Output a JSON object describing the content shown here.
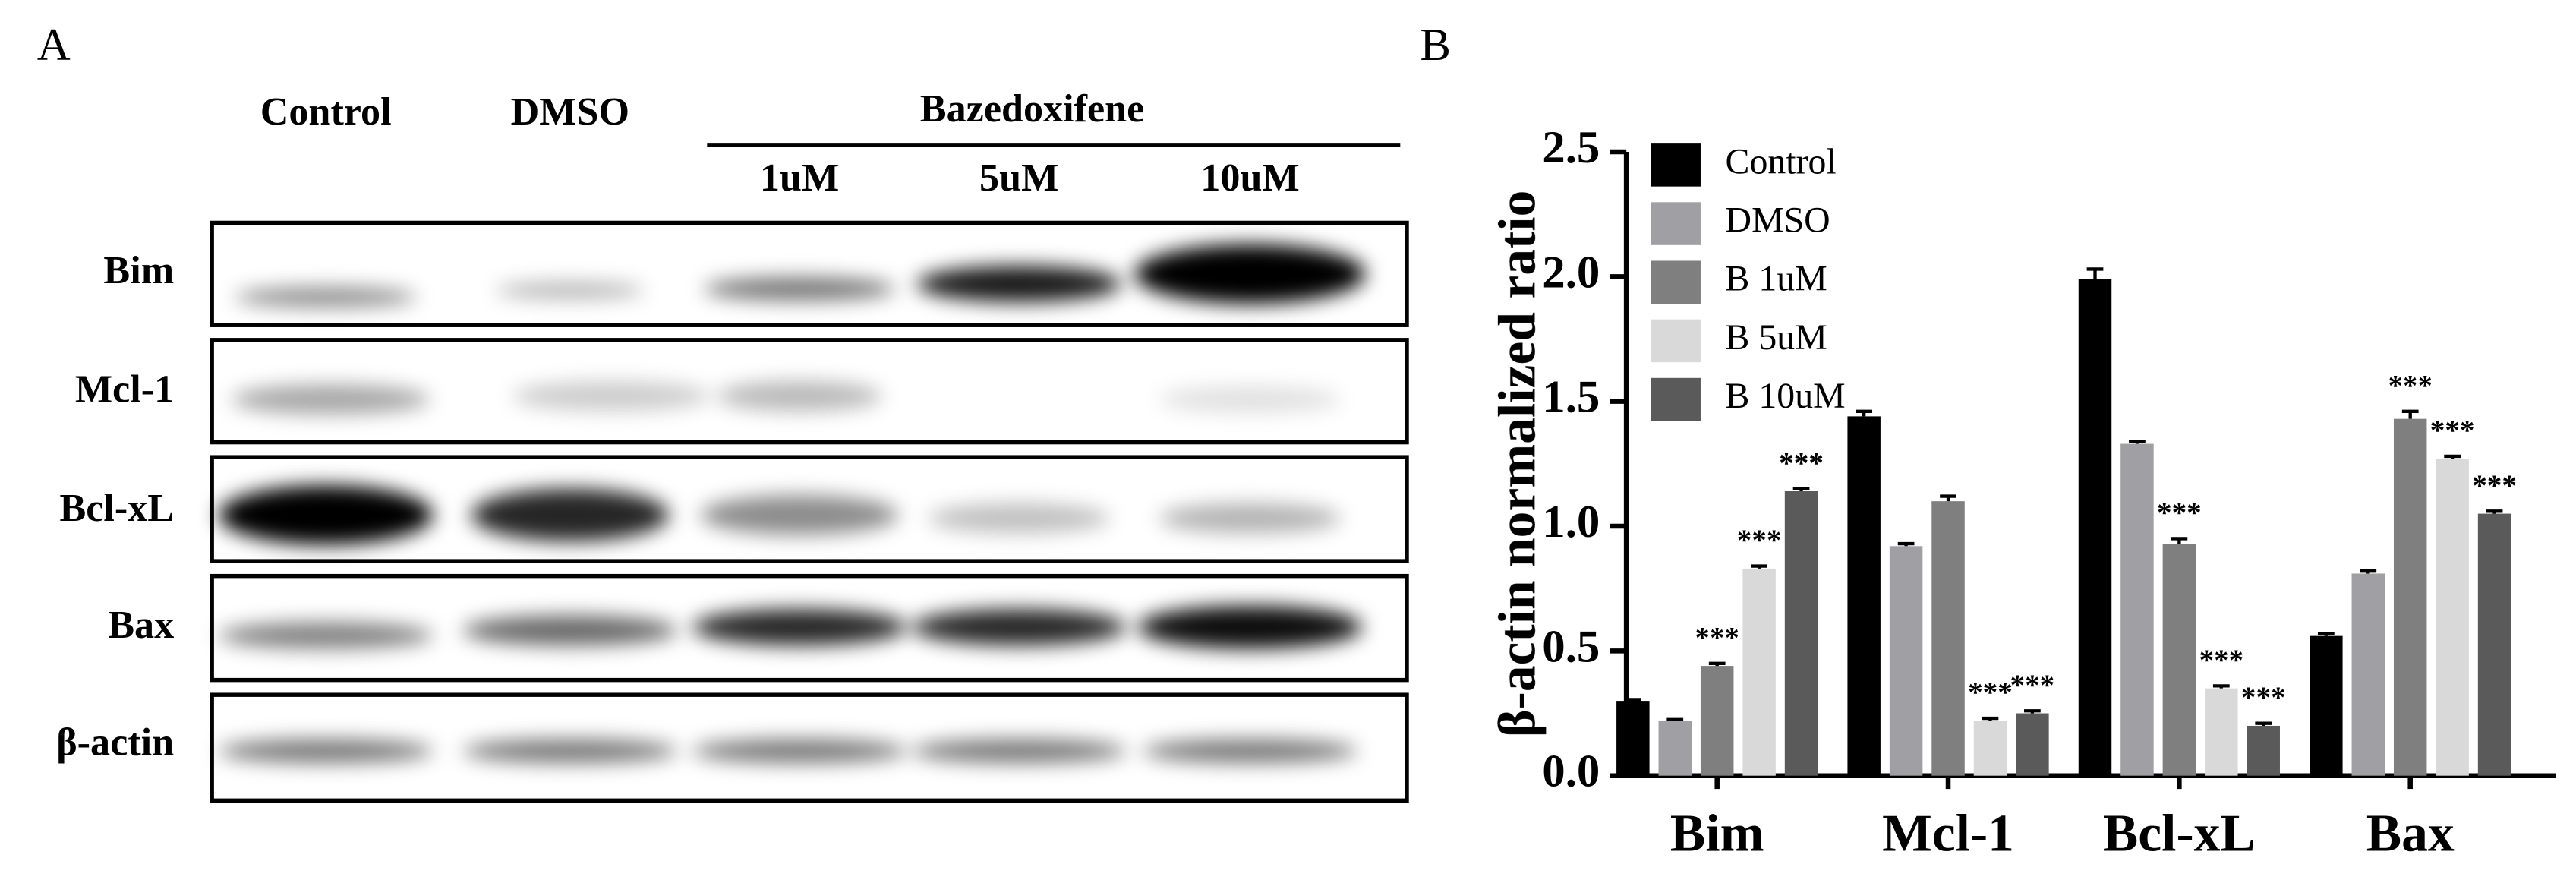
{
  "panel_a": {
    "label": "A",
    "column_labels": [
      "Control",
      "DMSO"
    ],
    "group_label": "Bazedoxifene",
    "group_columns": [
      "1uM",
      "5uM",
      "10uM"
    ],
    "row_labels": [
      "Bim",
      "Mcl-1",
      "Bcl-xL",
      "Bax",
      "β-actin"
    ]
  },
  "chart_data": {
    "type": "bar",
    "panel_label": "B",
    "y_label": "β-actin normalized ratio",
    "categories": [
      "Bim",
      "Mcl-1",
      "Bcl-xL",
      "Bax"
    ],
    "series": [
      {
        "name": "Control",
        "color": "#000000",
        "values": [
          0.3,
          1.44,
          1.99,
          0.56
        ],
        "errors": [
          0.005,
          0.02,
          0.04,
          0.01
        ]
      },
      {
        "name": "DMSO",
        "color": "#a0a0a4",
        "values": [
          0.22,
          0.92,
          1.33,
          0.81
        ],
        "errors": [
          0.005,
          0.01,
          0.01,
          0.01
        ]
      },
      {
        "name": "B 1uM",
        "color": "#7f7f7f",
        "values": [
          0.44,
          1.1,
          0.93,
          1.43
        ],
        "errors": [
          0.01,
          0.02,
          0.02,
          0.03
        ],
        "significance": [
          "***",
          null,
          "***",
          "***"
        ]
      },
      {
        "name": "B 5uM",
        "color": "#d9d9d9",
        "values": [
          0.83,
          0.22,
          0.35,
          1.27
        ],
        "errors": [
          0.01,
          0.01,
          0.01,
          0.01
        ],
        "significance": [
          "***",
          "***",
          "***",
          "***"
        ]
      },
      {
        "name": "B 10uM",
        "color": "#5a5a5a",
        "values": [
          1.14,
          0.25,
          0.2,
          1.05
        ],
        "errors": [
          0.01,
          0.01,
          0.01,
          0.01
        ],
        "significance": [
          "***",
          "***",
          "***",
          "***"
        ]
      }
    ],
    "ylim": [
      0,
      2.5
    ],
    "yticks": [
      {
        "value": 0,
        "label": "0.0"
      },
      0.5,
      {
        "value": 1,
        "label": "1.0"
      },
      1.5,
      {
        "value": 2,
        "label": "2.0"
      },
      2.5
    ],
    "legend": "upper-left"
  }
}
